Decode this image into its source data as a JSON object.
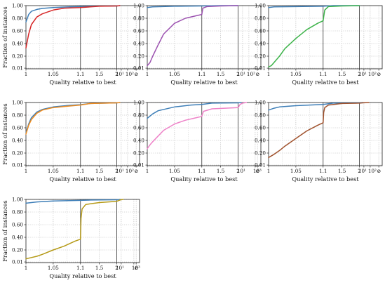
{
  "axis_text": {
    "xlabel": "Quality relative to best",
    "ylabel": "Fraction of instances",
    "y_ticks": [
      "0.01",
      "0.20",
      "0.40",
      "0.60",
      "0.80",
      "1.00"
    ],
    "x_ticks_a": [
      "1",
      "1.05",
      "1.1",
      "1.5",
      "2",
      "10¹",
      "10²",
      "⊘"
    ],
    "x_ticks_b": [
      "1",
      "1.05",
      "1.1",
      "1.5",
      "2",
      "10¹",
      "10³",
      "⊘"
    ]
  },
  "colors": {
    "baseline": "#3f7fb8",
    "red": "#d62728",
    "purple": "#9c52b0",
    "green": "#3db34a",
    "orange": "#f08c1e",
    "pink": "#ee82c8",
    "brown": "#a0522d",
    "olive": "#b59a17"
  },
  "chart_data": [
    {
      "type": "line",
      "xlabel": "Quality relative to best",
      "ylabel": "Fraction of instances",
      "ylim": [
        0,
        1.0
      ],
      "x_scale": "piecewise: linear 1-1.1, log 1.1-2, log beyond 2, then failure column",
      "grid": true,
      "series": [
        {
          "color": "baseline",
          "points": [
            [
              1,
              0.74
            ],
            [
              1.005,
              0.86
            ],
            [
              1.01,
              0.91
            ],
            [
              1.02,
              0.94
            ],
            [
              1.03,
              0.955
            ],
            [
              1.05,
              0.97
            ],
            [
              1.08,
              0.98
            ],
            [
              1.1,
              0.985
            ],
            [
              1.3,
              0.99
            ],
            [
              2,
              0.995
            ],
            [
              6,
              1.0
            ]
          ]
        },
        {
          "color": "red",
          "points": [
            [
              1,
              0.33
            ],
            [
              1.005,
              0.55
            ],
            [
              1.01,
              0.7
            ],
            [
              1.02,
              0.82
            ],
            [
              1.03,
              0.87
            ],
            [
              1.05,
              0.93
            ],
            [
              1.07,
              0.96
            ],
            [
              1.1,
              0.97
            ],
            [
              1.5,
              0.99
            ],
            [
              2,
              0.995
            ],
            [
              6,
              1.0
            ]
          ]
        }
      ]
    },
    {
      "type": "line",
      "xlabel": "Quality relative to best",
      "ylim": [
        0,
        1.0
      ],
      "grid": true,
      "series": [
        {
          "color": "baseline",
          "points": [
            [
              1,
              0.97
            ],
            [
              1.01,
              0.98
            ],
            [
              1.05,
              0.99
            ],
            [
              1.1,
              0.995
            ],
            [
              1.5,
              1.0
            ],
            [
              2,
              1.0
            ]
          ]
        },
        {
          "color": "purple",
          "points": [
            [
              1,
              0.05
            ],
            [
              1.005,
              0.1
            ],
            [
              1.01,
              0.2
            ],
            [
              1.02,
              0.38
            ],
            [
              1.03,
              0.55
            ],
            [
              1.05,
              0.72
            ],
            [
              1.07,
              0.8
            ],
            [
              1.09,
              0.84
            ],
            [
              1.1,
              0.86
            ],
            [
              1.12,
              0.96
            ],
            [
              1.2,
              0.985
            ],
            [
              1.5,
              0.995
            ],
            [
              2,
              1.0
            ]
          ]
        }
      ]
    },
    {
      "type": "line",
      "xlabel": "Quality relative to best",
      "ylim": [
        0,
        1.0
      ],
      "grid": true,
      "series": [
        {
          "color": "baseline",
          "points": [
            [
              1,
              0.97
            ],
            [
              1.01,
              0.98
            ],
            [
              1.05,
              0.985
            ],
            [
              1.1,
              0.99
            ],
            [
              1.3,
              1.0
            ],
            [
              2,
              1.0
            ]
          ]
        },
        {
          "color": "green",
          "points": [
            [
              1,
              0.03
            ],
            [
              1.005,
              0.05
            ],
            [
              1.01,
              0.1
            ],
            [
              1.02,
              0.2
            ],
            [
              1.03,
              0.32
            ],
            [
              1.05,
              0.48
            ],
            [
              1.07,
              0.62
            ],
            [
              1.09,
              0.72
            ],
            [
              1.1,
              0.76
            ],
            [
              1.11,
              0.82
            ],
            [
              1.13,
              0.93
            ],
            [
              1.2,
              0.985
            ],
            [
              1.5,
              0.995
            ],
            [
              2,
              1.0
            ]
          ]
        }
      ]
    },
    {
      "type": "line",
      "xlabel": "Quality relative to best",
      "ylabel": "Fraction of instances",
      "ylim": [
        0,
        1.0
      ],
      "grid": true,
      "series": [
        {
          "color": "baseline",
          "points": [
            [
              1,
              0.52
            ],
            [
              1.005,
              0.66
            ],
            [
              1.01,
              0.76
            ],
            [
              1.02,
              0.85
            ],
            [
              1.03,
              0.89
            ],
            [
              1.05,
              0.93
            ],
            [
              1.08,
              0.955
            ],
            [
              1.1,
              0.965
            ],
            [
              1.3,
              0.985
            ],
            [
              2,
              0.995
            ],
            [
              6,
              1.0
            ]
          ]
        },
        {
          "color": "orange",
          "points": [
            [
              1,
              0.5
            ],
            [
              1.005,
              0.64
            ],
            [
              1.01,
              0.73
            ],
            [
              1.02,
              0.83
            ],
            [
              1.03,
              0.88
            ],
            [
              1.05,
              0.92
            ],
            [
              1.08,
              0.945
            ],
            [
              1.1,
              0.96
            ],
            [
              1.3,
              0.985
            ],
            [
              2,
              0.995
            ],
            [
              6,
              1.0
            ]
          ]
        }
      ]
    },
    {
      "type": "line",
      "xlabel": "Quality relative to best",
      "ylim": [
        0,
        1.0
      ],
      "grid": true,
      "series": [
        {
          "color": "baseline",
          "points": [
            [
              1,
              0.75
            ],
            [
              1.01,
              0.82
            ],
            [
              1.02,
              0.87
            ],
            [
              1.05,
              0.93
            ],
            [
              1.08,
              0.96
            ],
            [
              1.1,
              0.97
            ],
            [
              1.3,
              0.99
            ],
            [
              2,
              0.995
            ],
            [
              6,
              1.0
            ]
          ]
        },
        {
          "color": "pink",
          "points": [
            [
              1,
              0.27
            ],
            [
              1.005,
              0.33
            ],
            [
              1.01,
              0.38
            ],
            [
              1.02,
              0.47
            ],
            [
              1.03,
              0.56
            ],
            [
              1.05,
              0.66
            ],
            [
              1.07,
              0.72
            ],
            [
              1.09,
              0.76
            ],
            [
              1.1,
              0.78
            ],
            [
              1.13,
              0.86
            ],
            [
              1.3,
              0.9
            ],
            [
              2,
              0.92
            ],
            [
              4,
              0.97
            ],
            [
              10,
              0.99
            ],
            [
              40,
              1.0
            ]
          ]
        }
      ]
    },
    {
      "type": "line",
      "xlabel": "Quality relative to best",
      "ylim": [
        0,
        1.0
      ],
      "grid": true,
      "series": [
        {
          "color": "baseline",
          "points": [
            [
              1,
              0.88
            ],
            [
              1.01,
              0.91
            ],
            [
              1.02,
              0.93
            ],
            [
              1.05,
              0.95
            ],
            [
              1.1,
              0.97
            ],
            [
              1.3,
              0.99
            ],
            [
              2,
              0.995
            ],
            [
              6,
              1.0
            ]
          ]
        },
        {
          "color": "brown",
          "points": [
            [
              1,
              0.13
            ],
            [
              1.01,
              0.18
            ],
            [
              1.02,
              0.24
            ],
            [
              1.03,
              0.31
            ],
            [
              1.05,
              0.43
            ],
            [
              1.07,
              0.55
            ],
            [
              1.09,
              0.64
            ],
            [
              1.1,
              0.68
            ],
            [
              1.11,
              0.84
            ],
            [
              1.13,
              0.92
            ],
            [
              1.2,
              0.96
            ],
            [
              1.5,
              0.985
            ],
            [
              2,
              0.99
            ],
            [
              6,
              0.995
            ],
            [
              60,
              1.0
            ]
          ]
        }
      ]
    },
    {
      "type": "line",
      "xlabel": "Quality relative to best",
      "ylabel": "Fraction of instances",
      "ylim": [
        0,
        1.0
      ],
      "grid": true,
      "series": [
        {
          "color": "baseline",
          "points": [
            [
              1,
              0.94
            ],
            [
              1.01,
              0.95
            ],
            [
              1.02,
              0.96
            ],
            [
              1.05,
              0.975
            ],
            [
              1.1,
              0.985
            ],
            [
              1.3,
              0.99
            ],
            [
              2,
              0.995
            ],
            [
              6,
              1.0
            ]
          ]
        },
        {
          "color": "olive",
          "points": [
            [
              1,
              0.06
            ],
            [
              1.01,
              0.08
            ],
            [
              1.02,
              0.1
            ],
            [
              1.03,
              0.13
            ],
            [
              1.05,
              0.2
            ],
            [
              1.07,
              0.26
            ],
            [
              1.09,
              0.34
            ],
            [
              1.1,
              0.37
            ],
            [
              1.11,
              0.7
            ],
            [
              1.13,
              0.85
            ],
            [
              1.2,
              0.92
            ],
            [
              1.5,
              0.95
            ],
            [
              2,
              0.97
            ],
            [
              6,
              0.99
            ],
            [
              20,
              1.0
            ]
          ]
        }
      ]
    }
  ]
}
